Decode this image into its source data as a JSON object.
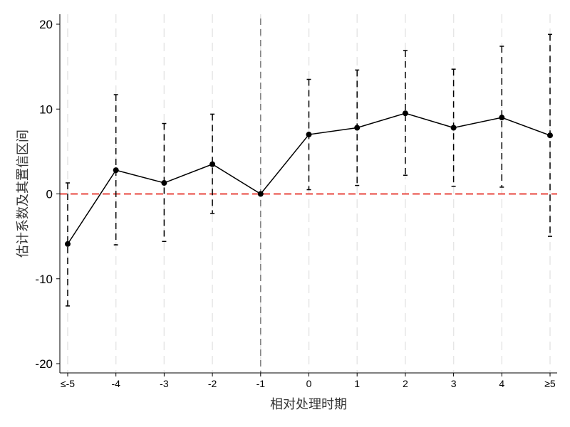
{
  "chart_data": {
    "type": "line",
    "title": "",
    "xlabel": "相对处理时期",
    "ylabel": "估计系数及其置信区间",
    "categories": [
      "≤-5",
      "-4",
      "-3",
      "-2",
      "-1",
      "0",
      "1",
      "2",
      "3",
      "4",
      "≥5"
    ],
    "series": [
      {
        "name": "estimate",
        "values": [
          -5.9,
          2.8,
          1.3,
          3.5,
          0.0,
          7.0,
          7.8,
          9.5,
          7.8,
          9.0,
          6.9
        ],
        "ci_lower": [
          -13.2,
          -6.0,
          -5.6,
          -2.3,
          0.0,
          0.5,
          1.0,
          2.2,
          0.9,
          0.8,
          -5.0
        ],
        "ci_upper": [
          1.3,
          11.7,
          8.3,
          9.4,
          0.0,
          13.5,
          14.6,
          16.9,
          14.7,
          17.4,
          18.8
        ]
      }
    ],
    "ylim": [
      -21,
      21
    ],
    "yticks": [
      -20,
      -10,
      0,
      10,
      20
    ],
    "ytick_labels": [
      "-20",
      "-10",
      "0",
      "10",
      "20"
    ],
    "reference_line_y": 0,
    "reference_line_color": "#e8473f",
    "event_line_category": "-1",
    "grid": "vertical dashed",
    "legend": "none"
  }
}
